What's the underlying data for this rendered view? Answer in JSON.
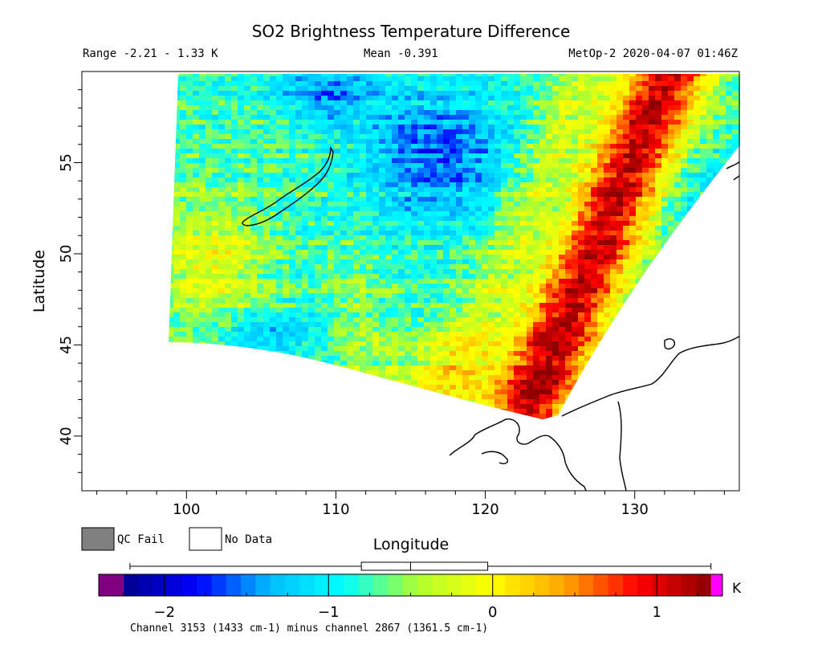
{
  "chart_data": {
    "type": "heatmap",
    "title": "SO2 Brightness Temperature Difference",
    "subtitle": {
      "range": "Range -2.21 - 1.33 K",
      "mean": "Mean -0.391",
      "satellite": "MetOp-2 2020-04-07 01:46Z"
    },
    "xlabel": "Longitude",
    "ylabel": "Latitude",
    "xlim": [
      93,
      137
    ],
    "ylim": [
      37,
      60
    ],
    "xticks": [
      100,
      110,
      120,
      130
    ],
    "yticks": [
      40,
      45,
      50,
      55
    ],
    "grid": false,
    "color_scale": {
      "min": -2.4,
      "max": 1.4,
      "ticks": [
        -2,
        -1,
        0,
        1
      ],
      "unit": "K",
      "underflow_color": "#800080",
      "overflow_color": "#ff00ff",
      "colormap": [
        "#00008b",
        "#0000ff",
        "#00bfff",
        "#00ffff",
        "#adff2f",
        "#ffff00",
        "#ffa500",
        "#ff0000",
        "#8b0000"
      ]
    },
    "box_plot": {
      "min": -2.21,
      "q1": -0.8,
      "median": -0.5,
      "q3": -0.03,
      "max": 1.33
    },
    "caption": "Channel 3153 (1433 cm-1) minus channel 2867 (1361.5 cm-1)"
  },
  "legend": {
    "qc_fail_label": "QC Fail",
    "qc_fail_color": "#808080",
    "no_data_label": "No Data",
    "no_data_color": "#ffffff"
  }
}
